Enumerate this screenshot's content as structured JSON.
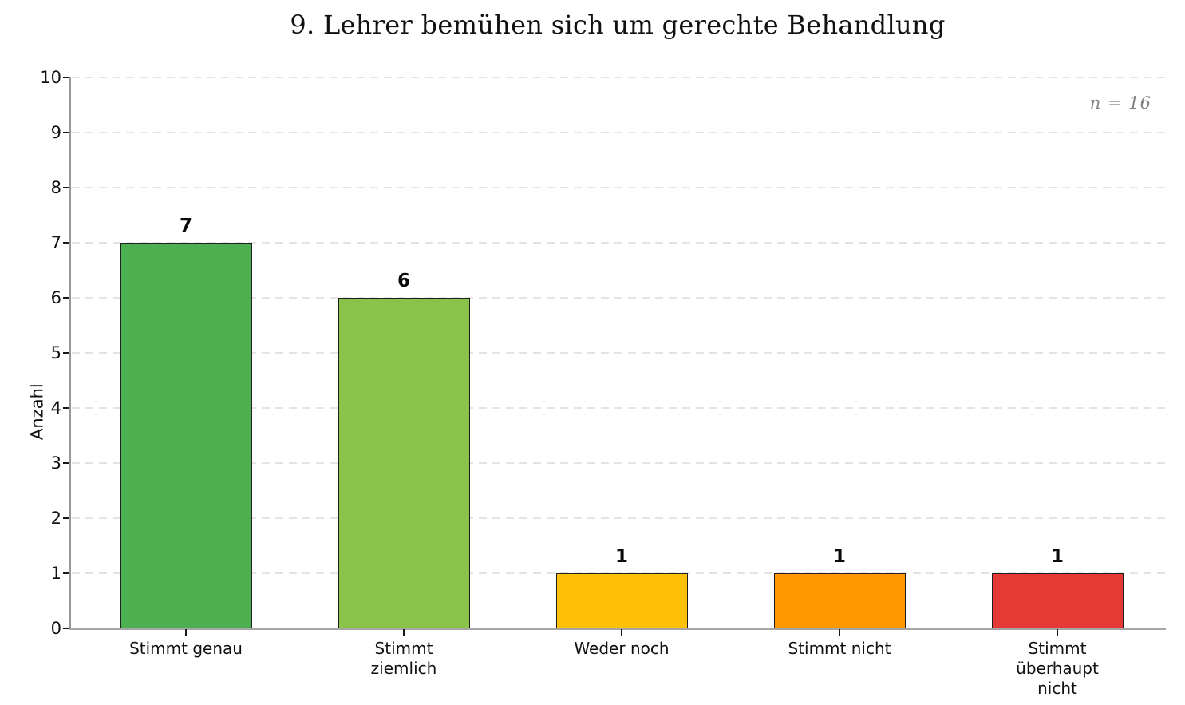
{
  "title": "9. Lehrer bemühen sich um gerechte Behandlung",
  "annotation": "n = 16",
  "ylabel": "Anzahl",
  "chart_data": {
    "type": "bar",
    "title": "9. Lehrer bemühen sich um gerechte Behandlung",
    "categories": [
      "Stimmt genau",
      "Stimmt ziemlich",
      "Weder noch",
      "Stimmt nicht",
      "Stimmt überhaupt nicht"
    ],
    "category_labels_wrapped": [
      "Stimmt genau",
      "Stimmt\nziemlich",
      "Weder noch",
      "Stimmt nicht",
      "Stimmt\nüberhaupt\nnicht"
    ],
    "values": [
      7,
      6,
      1,
      1,
      1
    ],
    "value_labels": [
      "7",
      "6",
      "1",
      "1",
      "1"
    ],
    "bar_colors": [
      "#4caf50",
      "#8bc34a",
      "#ffc107",
      "#ff9800",
      "#e53935"
    ],
    "xlabel": "",
    "ylabel": "Anzahl",
    "ylim": [
      0,
      10
    ],
    "yticks": [
      0,
      1,
      2,
      3,
      4,
      5,
      6,
      7,
      8,
      9,
      10
    ],
    "grid": "horizontal-dashed",
    "legend": "none",
    "annotation": "n = 16",
    "n": 16
  },
  "colors": {
    "background": "#ffffff",
    "grid": "#e4e4e4",
    "spine": "#9a9a9a",
    "tick": "#1a1a1a",
    "text": "#111111",
    "annotation_text": "#818181",
    "bar_border": "#1f1f1f"
  }
}
